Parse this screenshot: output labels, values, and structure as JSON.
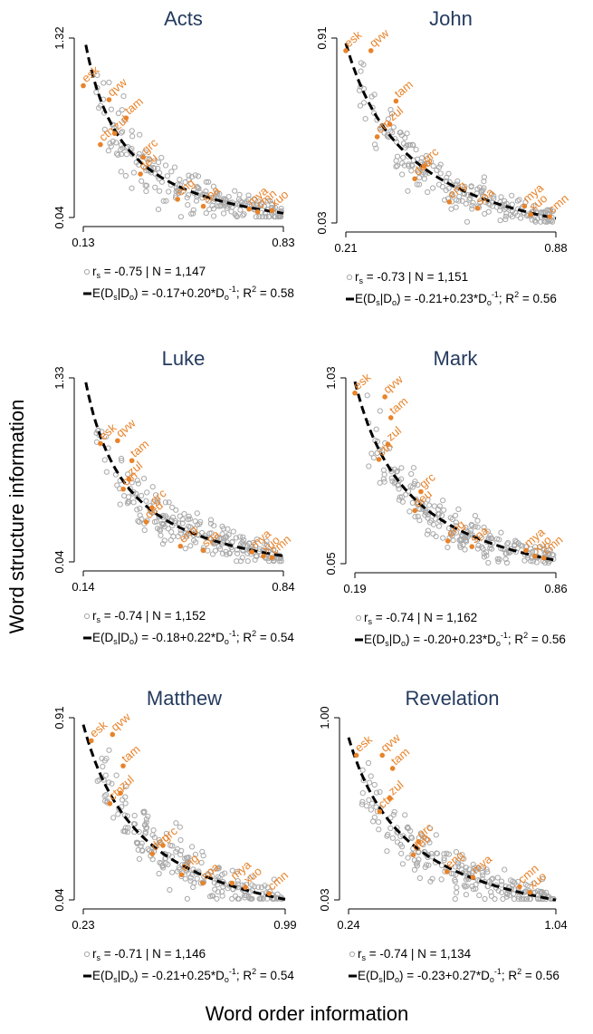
{
  "figure": {
    "ylabel": "Word structure information",
    "xlabel": "Word order information",
    "colors": {
      "title": "#243a5e",
      "points": "#a9a9a9",
      "highlight": "#e8832a",
      "fit": "#000000"
    }
  },
  "chart_data": [
    {
      "type": "scatter",
      "title": "Acts",
      "xlim": [
        0.13,
        0.83
      ],
      "ylim": [
        0.04,
        1.32
      ],
      "xticks": [
        "0.13",
        "0.83"
      ],
      "yticks": [
        "1.32",
        "0.04"
      ],
      "fit": {
        "a": -0.17,
        "b": 0.2
      },
      "stats": {
        "rs": "-0.75",
        "n": "1,147",
        "eq": "-0.17+0.20",
        "r2": "0.58"
      },
      "highlighted": [
        {
          "label": "esk",
          "x": 0.13,
          "y": 0.98
        },
        {
          "label": "qvw",
          "x": 0.22,
          "y": 0.88
        },
        {
          "label": "tam",
          "x": 0.28,
          "y": 0.75
        },
        {
          "label": "zul",
          "x": 0.24,
          "y": 0.64
        },
        {
          "label": "ctn",
          "x": 0.19,
          "y": 0.56
        },
        {
          "label": "grc",
          "x": 0.34,
          "y": 0.47
        },
        {
          "label": "deu",
          "x": 0.33,
          "y": 0.35
        },
        {
          "label": "eng",
          "x": 0.46,
          "y": 0.17
        },
        {
          "label": "spa",
          "x": 0.55,
          "y": 0.12
        },
        {
          "label": "mya",
          "x": 0.71,
          "y": 0.1
        },
        {
          "label": "cmn",
          "x": 0.74,
          "y": 0.08
        },
        {
          "label": "xuo",
          "x": 0.79,
          "y": 0.09
        }
      ],
      "n_points": 230
    },
    {
      "type": "scatter",
      "title": "John",
      "xlim": [
        0.21,
        0.88
      ],
      "ylim": [
        0.03,
        0.91
      ],
      "xticks": [
        "0.21",
        "0.88"
      ],
      "yticks": [
        "0.91",
        "0.03"
      ],
      "fit": {
        "a": -0.21,
        "b": 0.23
      },
      "stats": {
        "rs": "-0.73",
        "n": "1,151",
        "eq": "-0.21+0.23",
        "r2": "0.56"
      },
      "highlighted": [
        {
          "label": "esk",
          "x": 0.21,
          "y": 0.85
        },
        {
          "label": "qvw",
          "x": 0.29,
          "y": 0.85
        },
        {
          "label": "tam",
          "x": 0.37,
          "y": 0.61
        },
        {
          "label": "zul",
          "x": 0.35,
          "y": 0.5
        },
        {
          "label": "ctn",
          "x": 0.31,
          "y": 0.44
        },
        {
          "label": "grc",
          "x": 0.46,
          "y": 0.3
        },
        {
          "label": "deu",
          "x": 0.43,
          "y": 0.24
        },
        {
          "label": "eng",
          "x": 0.54,
          "y": 0.13
        },
        {
          "label": "spa",
          "x": 0.63,
          "y": 0.1
        },
        {
          "label": "mya",
          "x": 0.78,
          "y": 0.11
        },
        {
          "label": "xuo",
          "x": 0.8,
          "y": 0.07
        },
        {
          "label": "cmn",
          "x": 0.86,
          "y": 0.06
        }
      ],
      "n_points": 230
    },
    {
      "type": "scatter",
      "title": "Luke",
      "xlim": [
        0.14,
        0.84
      ],
      "ylim": [
        0.04,
        1.33
      ],
      "xticks": [
        "0.14",
        "0.84"
      ],
      "yticks": [
        "1.33",
        "0.04"
      ],
      "fit": {
        "a": -0.18,
        "b": 0.22
      },
      "stats": {
        "rs": "-0.74",
        "n": "1,152",
        "eq": "-0.18+0.22",
        "r2": "0.54"
      },
      "highlighted": [
        {
          "label": "esk",
          "x": 0.2,
          "y": 0.87
        },
        {
          "label": "qvw",
          "x": 0.26,
          "y": 0.89
        },
        {
          "label": "tam",
          "x": 0.31,
          "y": 0.75
        },
        {
          "label": "zul",
          "x": 0.3,
          "y": 0.62
        },
        {
          "label": "ctn",
          "x": 0.28,
          "y": 0.55
        },
        {
          "label": "grc",
          "x": 0.38,
          "y": 0.42
        },
        {
          "label": "deu",
          "x": 0.36,
          "y": 0.32
        },
        {
          "label": "eng",
          "x": 0.48,
          "y": 0.15
        },
        {
          "label": "spa",
          "x": 0.56,
          "y": 0.12
        },
        {
          "label": "mya",
          "x": 0.73,
          "y": 0.11
        },
        {
          "label": "xuo",
          "x": 0.77,
          "y": 0.08
        },
        {
          "label": "cmn",
          "x": 0.8,
          "y": 0.07
        }
      ],
      "n_points": 230
    },
    {
      "type": "scatter",
      "title": "Mark",
      "xlim": [
        0.19,
        0.86
      ],
      "ylim": [
        0.05,
        1.03
      ],
      "xticks": [
        "0.19",
        "0.86"
      ],
      "yticks": [
        "1.03",
        "0.05"
      ],
      "fit": {
        "a": -0.2,
        "b": 0.23
      },
      "stats": {
        "rs": "-0.74",
        "n": "1,162",
        "eq": "-0.20+0.23",
        "r2": "0.56"
      },
      "highlighted": [
        {
          "label": "esk",
          "x": 0.19,
          "y": 0.95
        },
        {
          "label": "qvw",
          "x": 0.29,
          "y": 0.93
        },
        {
          "label": "tam",
          "x": 0.31,
          "y": 0.82
        },
        {
          "label": "zul",
          "x": 0.3,
          "y": 0.68
        },
        {
          "label": "ctn",
          "x": 0.27,
          "y": 0.6
        },
        {
          "label": "grc",
          "x": 0.41,
          "y": 0.43
        },
        {
          "label": "deu",
          "x": 0.39,
          "y": 0.33
        },
        {
          "label": "eng",
          "x": 0.5,
          "y": 0.17
        },
        {
          "label": "spa",
          "x": 0.58,
          "y": 0.14
        },
        {
          "label": "mya",
          "x": 0.76,
          "y": 0.12
        },
        {
          "label": "xuo",
          "x": 0.79,
          "y": 0.09
        },
        {
          "label": "cmn",
          "x": 0.82,
          "y": 0.08
        }
      ],
      "n_points": 230
    },
    {
      "type": "scatter",
      "title": "Matthew",
      "xlim": [
        0.23,
        0.99
      ],
      "ylim": [
        0.04,
        0.91
      ],
      "xticks": [
        "0.23",
        "0.99"
      ],
      "yticks": [
        "0.91",
        "0.04"
      ],
      "fit": {
        "a": -0.21,
        "b": 0.25
      },
      "stats": {
        "rs": "-0.71",
        "n": "1,146",
        "eq": "-0.21+0.25",
        "r2": "0.54"
      },
      "highlighted": [
        {
          "label": "esk",
          "x": 0.26,
          "y": 0.8
        },
        {
          "label": "qvw",
          "x": 0.34,
          "y": 0.83
        },
        {
          "label": "tam",
          "x": 0.38,
          "y": 0.68
        },
        {
          "label": "zul",
          "x": 0.37,
          "y": 0.55
        },
        {
          "label": "ctn",
          "x": 0.33,
          "y": 0.5
        },
        {
          "label": "grc",
          "x": 0.53,
          "y": 0.3
        },
        {
          "label": "deu",
          "x": 0.49,
          "y": 0.26
        },
        {
          "label": "eng",
          "x": 0.6,
          "y": 0.16
        },
        {
          "label": "spa",
          "x": 0.68,
          "y": 0.12
        },
        {
          "label": "mya",
          "x": 0.79,
          "y": 0.12
        },
        {
          "label": "xuo",
          "x": 0.84,
          "y": 0.1
        },
        {
          "label": "cmn",
          "x": 0.93,
          "y": 0.07
        }
      ],
      "n_points": 230
    },
    {
      "type": "scatter",
      "title": "Revelation",
      "xlim": [
        0.24,
        1.04
      ],
      "ylim": [
        0.03,
        1.0
      ],
      "xticks": [
        "0.24",
        "1.04"
      ],
      "yticks": [
        "1.00",
        "0.03"
      ],
      "fit": {
        "a": -0.23,
        "b": 0.27
      },
      "stats": {
        "rs": "-0.74",
        "n": "1,134",
        "eq": "-0.23+0.27",
        "r2": "0.56"
      },
      "highlighted": [
        {
          "label": "esk",
          "x": 0.27,
          "y": 0.8
        },
        {
          "label": "qvw",
          "x": 0.37,
          "y": 0.8
        },
        {
          "label": "tam",
          "x": 0.41,
          "y": 0.73
        },
        {
          "label": "zul",
          "x": 0.4,
          "y": 0.57
        },
        {
          "label": "ctn",
          "x": 0.36,
          "y": 0.5
        },
        {
          "label": "grc",
          "x": 0.51,
          "y": 0.34
        },
        {
          "label": "deu",
          "x": 0.49,
          "y": 0.27
        },
        {
          "label": "eng",
          "x": 0.62,
          "y": 0.18
        },
        {
          "label": "mya",
          "x": 0.72,
          "y": 0.15
        },
        {
          "label": "cmn",
          "x": 0.9,
          "y": 0.1
        },
        {
          "label": "xuo",
          "x": 0.94,
          "y": 0.07
        }
      ],
      "n_points": 230
    }
  ]
}
